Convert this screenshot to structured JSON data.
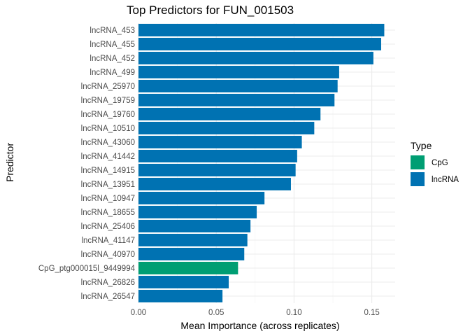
{
  "chart_data": {
    "type": "bar",
    "orientation": "horizontal",
    "title": "Top Predictors for FUN_001503",
    "xlabel": "Mean Importance (across replicates)",
    "ylabel": "Predictor",
    "xlim": [
      0,
      0.165
    ],
    "xticks": [
      0,
      0.05,
      0.1,
      0.15
    ],
    "xtick_labels": [
      "0.00",
      "0.05",
      "0.10",
      "0.15"
    ],
    "grid": true,
    "legend": {
      "title": "Type",
      "placement": "right",
      "items": [
        {
          "label": "CpG",
          "color": "#009E73"
        },
        {
          "label": "lncRNA",
          "color": "#0072B2"
        }
      ]
    },
    "categories": [
      "lncRNA_453",
      "lncRNA_455",
      "lncRNA_452",
      "lncRNA_499",
      "lncRNA_25970",
      "lncRNA_19759",
      "lncRNA_19760",
      "lncRNA_10510",
      "lncRNA_43060",
      "lncRNA_41442",
      "lncRNA_14915",
      "lncRNA_13951",
      "lncRNA_10947",
      "lncRNA_18655",
      "lncRNA_25406",
      "lncRNA_41147",
      "lncRNA_40970",
      "CpG_ptg000015l_9449994",
      "lncRNA_26826",
      "lncRNA_26547"
    ],
    "values": [
      0.158,
      0.156,
      0.151,
      0.129,
      0.128,
      0.126,
      0.117,
      0.113,
      0.105,
      0.102,
      0.101,
      0.098,
      0.081,
      0.076,
      0.072,
      0.07,
      0.068,
      0.064,
      0.058,
      0.054
    ],
    "types": [
      "lncRNA",
      "lncRNA",
      "lncRNA",
      "lncRNA",
      "lncRNA",
      "lncRNA",
      "lncRNA",
      "lncRNA",
      "lncRNA",
      "lncRNA",
      "lncRNA",
      "lncRNA",
      "lncRNA",
      "lncRNA",
      "lncRNA",
      "lncRNA",
      "lncRNA",
      "CpG",
      "lncRNA",
      "lncRNA"
    ]
  }
}
